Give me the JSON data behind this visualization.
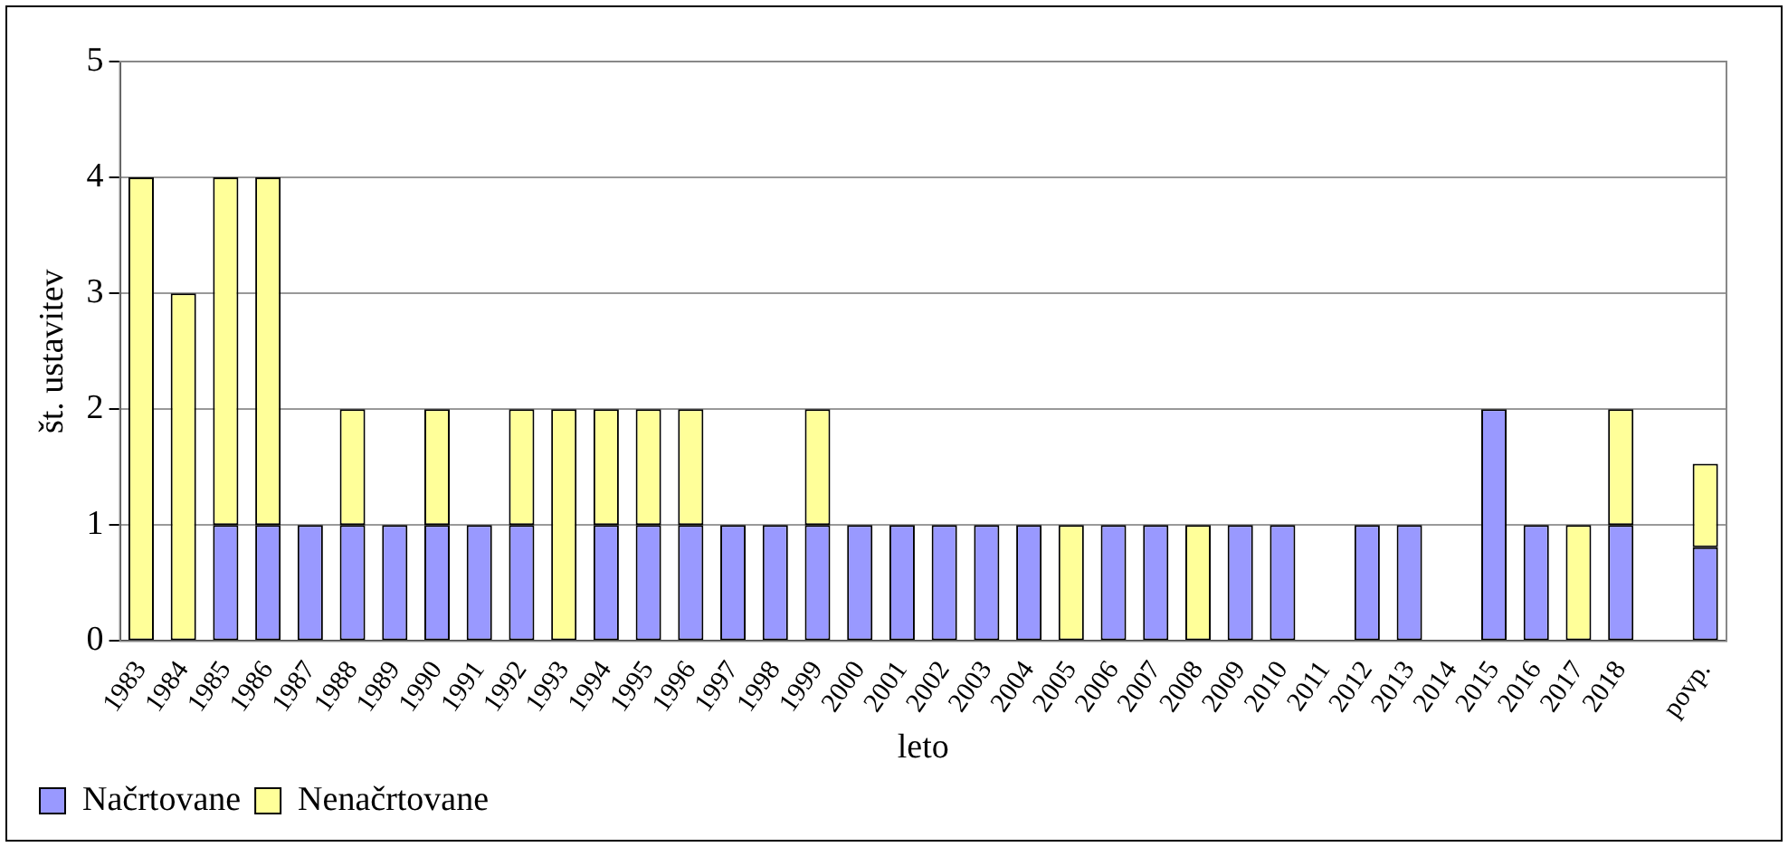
{
  "chart_data": {
    "type": "bar",
    "stacked": true,
    "xlabel": "leto",
    "ylabel": "št. ustavitev",
    "categories": [
      "1983",
      "1984",
      "1985",
      "1986",
      "1987",
      "1988",
      "1989",
      "1990",
      "1991",
      "1992",
      "1993",
      "1994",
      "1995",
      "1996",
      "1997",
      "1998",
      "1999",
      "2000",
      "2001",
      "2002",
      "2003",
      "2004",
      "2005",
      "2006",
      "2007",
      "2008",
      "2009",
      "2010",
      "2011",
      "2012",
      "2013",
      "2014",
      "2015",
      "2016",
      "2017",
      "2018",
      null,
      "povp."
    ],
    "series": [
      {
        "name": "Načrtovane",
        "color": "#9999ff",
        "values": [
          0,
          0,
          1,
          1,
          1,
          1,
          1,
          1,
          1,
          1,
          0,
          1,
          1,
          1,
          1,
          1,
          1,
          1,
          1,
          1,
          1,
          1,
          0,
          1,
          1,
          0,
          1,
          1,
          0,
          1,
          1,
          0,
          2,
          1,
          0,
          1,
          null,
          0.81
        ]
      },
      {
        "name": "Nenačrtovane",
        "color": "#ffff99",
        "values": [
          4,
          3,
          3,
          3,
          0,
          1,
          0,
          1,
          0,
          1,
          2,
          1,
          1,
          1,
          0,
          0,
          1,
          0,
          0,
          0,
          0,
          0,
          1,
          0,
          0,
          1,
          0,
          0,
          0,
          0,
          0,
          0,
          0,
          0,
          1,
          1,
          null,
          0.72
        ]
      }
    ],
    "ylim": [
      0,
      5
    ],
    "yticks": [
      0,
      1,
      2,
      3,
      4,
      5
    ],
    "grid": "y",
    "legend": "bottom left"
  }
}
